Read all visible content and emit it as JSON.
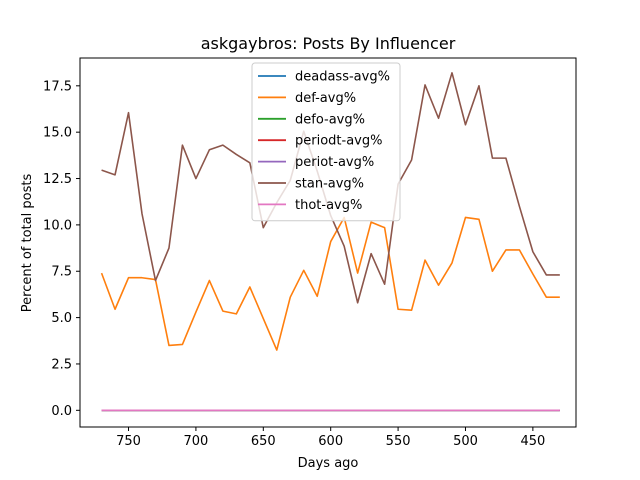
{
  "chart_data": {
    "type": "line",
    "title": "askgaybros: Posts By Influencer",
    "xlabel": "Days ago",
    "ylabel": "Percent of total posts",
    "xlim": [
      786,
      418
    ],
    "ylim": [
      -0.9,
      19.0
    ],
    "x_reversed": true,
    "xticks": [
      750,
      700,
      650,
      600,
      550,
      500,
      450
    ],
    "yticks": [
      0.0,
      2.5,
      5.0,
      7.5,
      10.0,
      12.5,
      15.0,
      17.5
    ],
    "xtick_labels": [
      "750",
      "700",
      "650",
      "600",
      "550",
      "500",
      "450"
    ],
    "ytick_labels": [
      "0.0",
      "2.5",
      "5.0",
      "7.5",
      "10.0",
      "12.5",
      "15.0",
      "17.5"
    ],
    "grid": false,
    "legend_position": "upper center",
    "x": [
      770,
      760,
      750,
      740,
      730,
      720,
      710,
      700,
      690,
      680,
      670,
      660,
      650,
      640,
      630,
      620,
      610,
      600,
      590,
      580,
      570,
      560,
      550,
      540,
      530,
      520,
      510,
      500,
      490,
      480,
      470,
      460,
      450,
      440,
      430
    ],
    "series": [
      {
        "name": "deadass-avg%",
        "color": "#1f77b4",
        "values": [
          0,
          0,
          0,
          0,
          0,
          0,
          0,
          0,
          0,
          0,
          0,
          0,
          0,
          0,
          0,
          0,
          0,
          0,
          0,
          0,
          0,
          0,
          0,
          0,
          0,
          0,
          0,
          0,
          0,
          0,
          0,
          0,
          0,
          0,
          0
        ]
      },
      {
        "name": "def-avg%",
        "color": "#ff7f0e",
        "values": [
          7.4,
          5.45,
          7.15,
          7.15,
          7.05,
          3.5,
          3.55,
          5.3,
          7.0,
          5.35,
          5.2,
          6.65,
          4.95,
          3.25,
          6.1,
          7.55,
          6.15,
          9.1,
          10.4,
          7.4,
          10.15,
          9.85,
          5.45,
          5.4,
          8.1,
          6.75,
          7.95,
          10.4,
          10.3,
          7.5,
          8.65,
          8.65,
          7.35,
          6.1,
          6.1
        ]
      },
      {
        "name": "defo-avg%",
        "color": "#2ca02c",
        "values": [
          0,
          0,
          0,
          0,
          0,
          0,
          0,
          0,
          0,
          0,
          0,
          0,
          0,
          0,
          0,
          0,
          0,
          0,
          0,
          0,
          0,
          0,
          0,
          0,
          0,
          0,
          0,
          0,
          0,
          0,
          0,
          0,
          0,
          0,
          0
        ]
      },
      {
        "name": "periodt-avg%",
        "color": "#d62728",
        "values": [
          0,
          0,
          0,
          0,
          0,
          0,
          0,
          0,
          0,
          0,
          0,
          0,
          0,
          0,
          0,
          0,
          0,
          0,
          0,
          0,
          0,
          0,
          0,
          0,
          0,
          0,
          0,
          0,
          0,
          0,
          0,
          0,
          0,
          0,
          0
        ]
      },
      {
        "name": "periot-avg%",
        "color": "#9467bd",
        "values": [
          0,
          0,
          0,
          0,
          0,
          0,
          0,
          0,
          0,
          0,
          0,
          0,
          0,
          0,
          0,
          0,
          0,
          0,
          0,
          0,
          0,
          0,
          0,
          0,
          0,
          0,
          0,
          0,
          0,
          0,
          0,
          0,
          0,
          0,
          0
        ]
      },
      {
        "name": "stan-avg%",
        "color": "#8c564b",
        "values": [
          12.95,
          12.7,
          16.05,
          10.6,
          7.0,
          8.75,
          14.3,
          12.5,
          14.05,
          14.3,
          13.8,
          13.35,
          9.85,
          11.2,
          12.4,
          15.05,
          12.9,
          10.5,
          8.85,
          5.8,
          8.45,
          6.8,
          12.2,
          13.5,
          17.55,
          15.75,
          18.2,
          15.4,
          17.5,
          13.6,
          13.6,
          11.0,
          8.55,
          7.3,
          7.3
        ]
      },
      {
        "name": "thot-avg%",
        "color": "#e377c2",
        "values": [
          0,
          0,
          0,
          0,
          0,
          0,
          0,
          0,
          0,
          0,
          0,
          0,
          0,
          0,
          0,
          0,
          0,
          0,
          0,
          0,
          0,
          0,
          0,
          0,
          0,
          0,
          0,
          0,
          0,
          0,
          0,
          0,
          0,
          0,
          0
        ]
      }
    ]
  }
}
